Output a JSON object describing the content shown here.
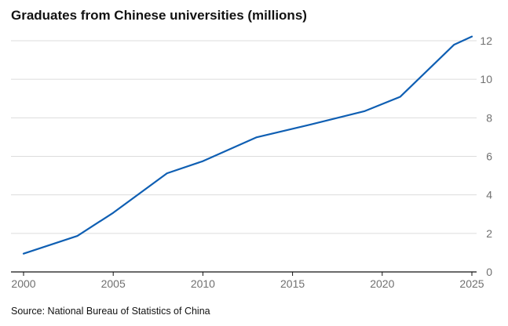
{
  "chart_data": {
    "type": "line",
    "title": "Graduates from Chinese universities (millions)",
    "xlabel": "",
    "ylabel": "",
    "xlim": [
      2000,
      2025
    ],
    "ylim": [
      0,
      12
    ],
    "x_ticks": [
      2000,
      2005,
      2010,
      2015,
      2020,
      2025
    ],
    "y_ticks": [
      0,
      2,
      4,
      6,
      8,
      10,
      12
    ],
    "grid": "horizontal",
    "y_axis_side": "right",
    "series": [
      {
        "color": "#0f5fb3",
        "x": [
          2000,
          2003,
          2005,
          2008,
          2010,
          2013,
          2016,
          2019,
          2021,
          2024,
          2025
        ],
        "values": [
          0.95,
          1.87,
          3.07,
          5.12,
          5.75,
          6.99,
          7.65,
          8.34,
          9.09,
          11.79,
          12.22
        ]
      }
    ]
  },
  "source": "Source: National Bureau of Statistics of China",
  "colors": {
    "line": "#0f5fb3",
    "grid": "#dcdcdc",
    "axis": "#121212",
    "tick_text": "#707070"
  }
}
